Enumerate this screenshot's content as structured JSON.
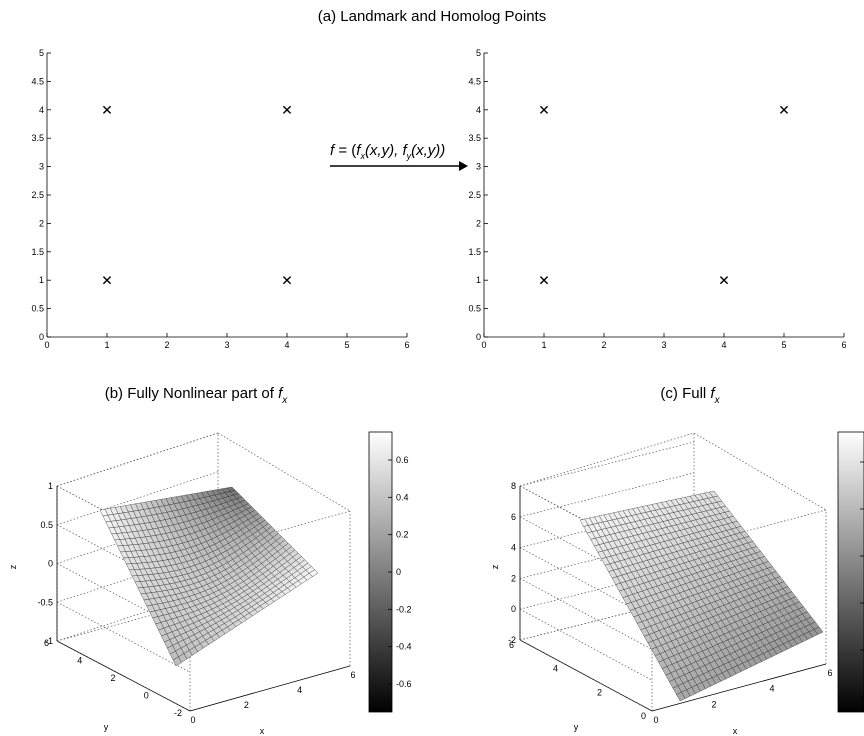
{
  "figure": {
    "title_a": "(a) Landmark and Homolog Points",
    "title_b": "(b) Fully Nonlinear part of ",
    "title_b_var": "f",
    "title_b_sub": "x",
    "title_c": "(c) Full ",
    "title_c_var": "f",
    "title_c_sub": "x",
    "mapping_label": {
      "f": "f",
      "eq": " = (",
      "f1": "f",
      "s1": "x",
      "a1": "(x,y), ",
      "f2": "f",
      "s2": "y",
      "a2": "(x,y))"
    }
  },
  "chart_data": [
    {
      "type": "scatter",
      "panel": "a-left",
      "x": [
        1,
        4,
        1,
        4
      ],
      "y": [
        4,
        4,
        1,
        1
      ],
      "marker": "x",
      "xlim": [
        0,
        6
      ],
      "ylim": [
        0,
        5
      ],
      "xticks": [
        "0",
        "1",
        "2",
        "3",
        "4",
        "5",
        "6"
      ],
      "yticks": [
        "0",
        "0.5",
        "1",
        "1.5",
        "2",
        "2.5",
        "3",
        "3.5",
        "4",
        "4.5",
        "5"
      ]
    },
    {
      "type": "scatter",
      "panel": "a-right",
      "x": [
        1,
        5,
        1,
        4
      ],
      "y": [
        4,
        4,
        1,
        1
      ],
      "marker": "x",
      "xlim": [
        0,
        6
      ],
      "ylim": [
        0,
        5
      ],
      "xticks": [
        "0",
        "1",
        "2",
        "3",
        "4",
        "5",
        "6"
      ],
      "yticks": [
        "0",
        "0.5",
        "1",
        "1.5",
        "2",
        "2.5",
        "3",
        "3.5",
        "4",
        "4.5",
        "5"
      ]
    },
    {
      "type": "surface",
      "panel": "b",
      "xlabel": "x",
      "ylabel": "y",
      "zlabel": "z",
      "xlim": [
        0,
        6
      ],
      "ylim": [
        -2,
        6
      ],
      "zlim": [
        -1,
        1
      ],
      "xticks": [
        "0",
        "2",
        "4",
        "6"
      ],
      "yticks": [
        "-2",
        "0",
        "2",
        "4",
        "6"
      ],
      "zticks": [
        "-1",
        "-0.5",
        "0",
        "0.5",
        "1"
      ],
      "colorbar_ticks": [
        "0.6",
        "0.4",
        "0.2",
        "0",
        "-0.2",
        "-0.4",
        "-0.6"
      ],
      "colorbar_range": [
        -0.75,
        0.75
      ],
      "colormap": "gray"
    },
    {
      "type": "surface",
      "panel": "c",
      "xlabel": "x",
      "ylabel": "y",
      "zlabel": "z",
      "xlim": [
        0,
        6
      ],
      "ylim": [
        0,
        6
      ],
      "zlim": [
        -2,
        8
      ],
      "xticks": [
        "0",
        "2",
        "4",
        "6"
      ],
      "yticks": [
        "0",
        "2",
        "4",
        "6"
      ],
      "zticks": [
        "-2",
        "0",
        "2",
        "4",
        "6",
        "8"
      ],
      "colormap": "gray"
    }
  ]
}
